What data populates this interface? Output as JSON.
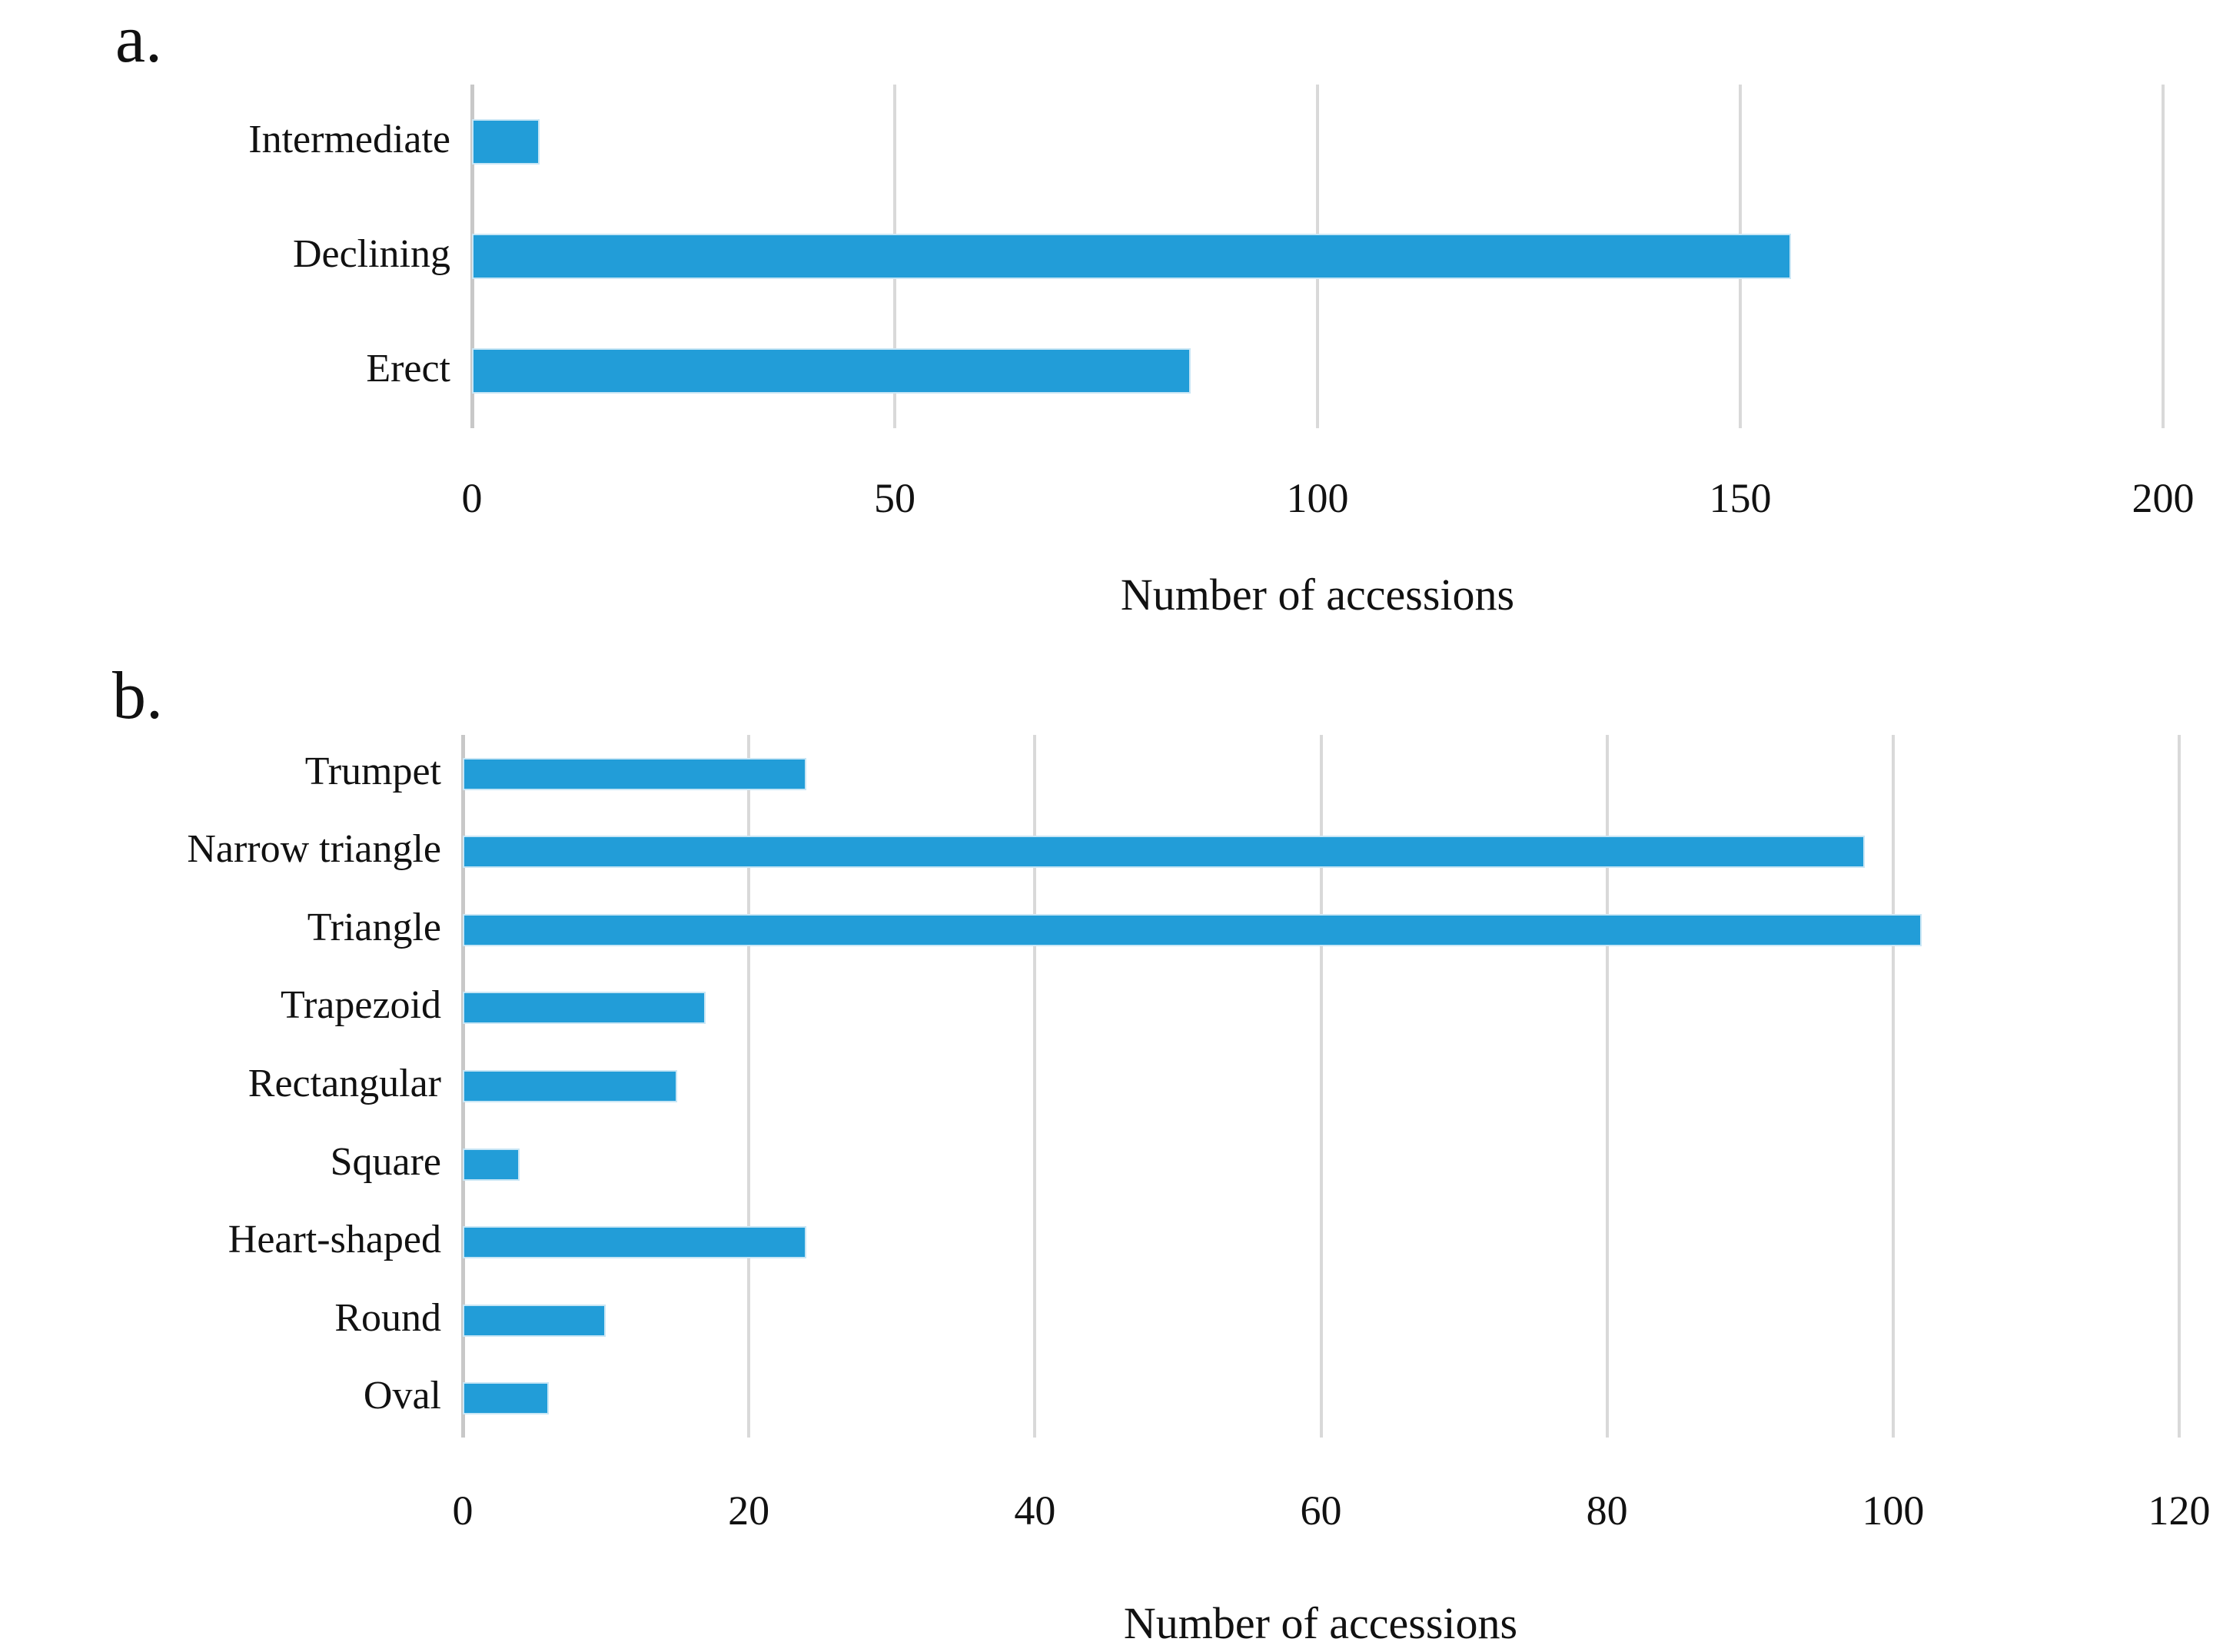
{
  "figure": {
    "background_color": "#ffffff",
    "bar_color": "#229dd8",
    "bar_border_color": "#c9e6f5",
    "gridline_color": "#d9d9d9",
    "axis_line_color": "#c8c8c8",
    "text_color": "#111111"
  },
  "panels": [
    {
      "letter": "a.",
      "xlabel": "Number of accessions"
    },
    {
      "letter": "b.",
      "xlabel": "Number of accessions"
    }
  ],
  "chart_data": [
    {
      "type": "bar",
      "orientation": "horizontal",
      "panel_letter": "a.",
      "title": "",
      "xlabel": "Number of accessions",
      "ylabel": "",
      "xlim": [
        0,
        200
      ],
      "xticks": [
        0,
        50,
        100,
        150,
        200
      ],
      "grid": "vertical-gridlines-on",
      "legend": "none",
      "categories": [
        "Intermediate",
        "Declining",
        "Erect"
      ],
      "values": [
        8,
        156,
        85
      ]
    },
    {
      "type": "bar",
      "orientation": "horizontal",
      "panel_letter": "b.",
      "title": "",
      "xlabel": "Number of accessions",
      "ylabel": "",
      "xlim": [
        0,
        120
      ],
      "xticks": [
        0,
        20,
        40,
        60,
        80,
        100,
        120
      ],
      "grid": "vertical-gridlines-on",
      "legend": "none",
      "categories": [
        "Trumpet",
        "Narrow triangle",
        "Triangle",
        "Trapezoid",
        "Rectangular",
        "Square",
        "Heart-shaped",
        "Round",
        "Oval"
      ],
      "values": [
        24,
        98,
        102,
        17,
        15,
        4,
        24,
        10,
        6
      ]
    }
  ]
}
